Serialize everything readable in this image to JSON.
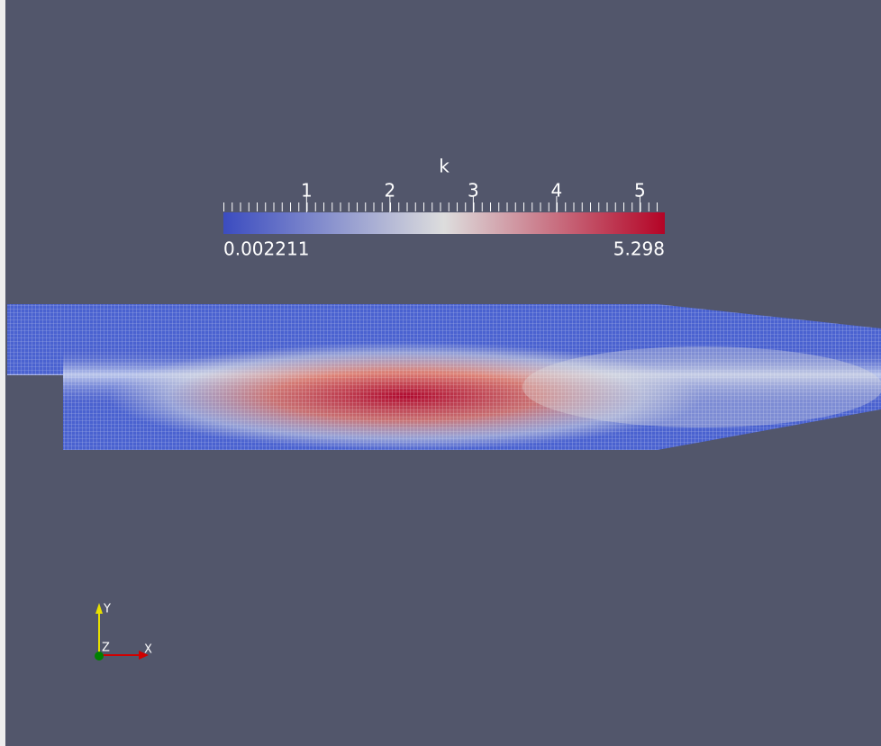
{
  "colorbar": {
    "title": "k",
    "range": [
      0.002211,
      5.298
    ],
    "ticks": [
      1,
      2,
      3,
      4,
      5
    ],
    "colors": [
      "#3b4cc0",
      "#dddddd",
      "#b40426"
    ]
  },
  "axes": {
    "x": "X",
    "y": "Y",
    "z": "Z"
  }
}
